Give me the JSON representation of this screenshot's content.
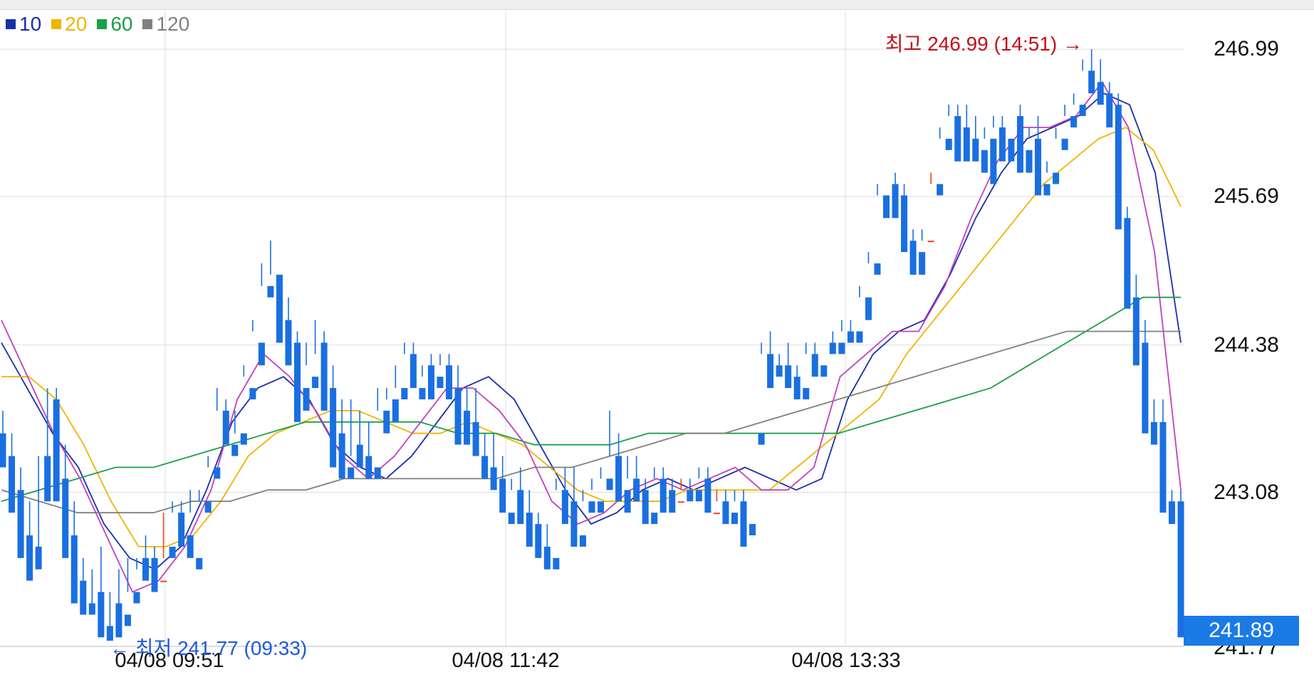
{
  "legend": [
    {
      "name": "10",
      "color": "#1a2fa8"
    },
    {
      "name": "20",
      "color": "#f0b400"
    },
    {
      "name": "60",
      "color": "#1aa048"
    },
    {
      "name": "120",
      "color": "#808080"
    }
  ],
  "annotations": {
    "high": "최고 246.99 (14:51) →",
    "low": "← 최저 241.77 (09:33)",
    "current_price": "241.89",
    "bottom_cut_label": "241.77"
  },
  "colors": {
    "up": "#f0441a",
    "down": "#1a6fe0",
    "ma5": "#c040c0",
    "grid": "#dddddd"
  },
  "chart_data": {
    "type": "candlestick",
    "y_ticks": [
      "246.99",
      "245.69",
      "244.38",
      "243.08"
    ],
    "x_ticks": [
      "04/08 09:51",
      "04/08 11:42",
      "04/08 13:33"
    ],
    "ylim": [
      241.72,
      247.33
    ],
    "high": {
      "value": 246.99,
      "time": "14:51"
    },
    "low": {
      "value": 241.77,
      "time": "09:33"
    },
    "last": 241.89,
    "series": [
      {
        "name": "10",
        "color": "#1a2fa8",
        "values": [
          244.4,
          244.0,
          243.6,
          243.3,
          242.8,
          242.5,
          242.4,
          242.6,
          243.1,
          243.7,
          244.0,
          244.1,
          243.9,
          243.5,
          243.3,
          243.2,
          243.4,
          243.7,
          244.0,
          244.1,
          243.9,
          243.5,
          243.1,
          242.8,
          242.9,
          243.1,
          243.2,
          243.1,
          243.2,
          243.3,
          243.2,
          243.1,
          243.2,
          243.9,
          244.3,
          244.5,
          244.6,
          245.0,
          245.5,
          245.9,
          246.2,
          246.3,
          246.4,
          246.6,
          246.5,
          245.9,
          244.4
        ]
      },
      {
        "name": "20",
        "color": "#f0b400",
        "values": [
          244.1,
          244.1,
          243.9,
          243.5,
          243.0,
          242.6,
          242.6,
          242.7,
          243.0,
          243.4,
          243.6,
          243.7,
          243.8,
          243.8,
          243.7,
          243.6,
          243.6,
          243.7,
          243.6,
          243.5,
          243.3,
          243.1,
          243.0,
          243.0,
          243.0,
          243.1,
          243.1,
          243.1,
          243.1,
          243.3,
          243.5,
          243.7,
          243.9,
          244.3,
          244.6,
          244.9,
          245.2,
          245.5,
          245.8,
          246.0,
          246.2,
          246.3,
          246.1,
          245.6
        ]
      },
      {
        "name": "60",
        "color": "#1aa048",
        "values": [
          243.0,
          243.1,
          243.2,
          243.3,
          243.3,
          243.4,
          243.5,
          243.6,
          243.7,
          243.7,
          243.7,
          243.7,
          243.6,
          243.6,
          243.5,
          243.5,
          243.5,
          243.6,
          243.6,
          243.6,
          243.6,
          243.6,
          243.6,
          243.7,
          243.8,
          243.9,
          244.0,
          244.2,
          244.4,
          244.6,
          244.8,
          244.8
        ]
      },
      {
        "name": "120",
        "color": "#808080",
        "values": [
          243.1,
          243.0,
          242.9,
          242.9,
          242.9,
          243.0,
          243.0,
          243.1,
          243.1,
          243.2,
          243.2,
          243.2,
          243.2,
          243.2,
          243.3,
          243.3,
          243.4,
          243.5,
          243.6,
          243.6,
          243.7,
          243.8,
          243.9,
          244.0,
          244.1,
          244.2,
          244.3,
          244.4,
          244.5,
          244.5,
          244.5,
          244.5
        ]
      },
      {
        "name": "",
        "color": "#c040c0",
        "values": [
          244.6,
          244.1,
          243.6,
          243.2,
          242.7,
          242.2,
          242.3,
          242.6,
          243.1,
          243.9,
          244.3,
          244.1,
          243.8,
          243.4,
          243.2,
          243.4,
          243.7,
          244.0,
          244.0,
          243.8,
          243.5,
          243.0,
          242.8,
          242.9,
          243.1,
          243.2,
          243.1,
          243.2,
          243.3,
          243.1,
          243.1,
          243.3,
          244.1,
          244.3,
          244.5,
          244.5,
          244.9,
          245.5,
          246.0,
          246.3,
          246.3,
          246.4,
          246.7,
          246.3,
          245.2,
          243.1
        ]
      }
    ],
    "candles": [
      [
        243.6,
        243.8,
        243.4,
        243.3
      ],
      [
        243.4,
        243.6,
        243.1,
        242.9
      ],
      [
        243.1,
        243.3,
        242.6,
        242.5
      ],
      [
        242.7,
        243.0,
        242.6,
        242.3
      ],
      [
        242.6,
        243.4,
        242.5,
        242.4
      ],
      [
        243.4,
        244.0,
        243.2,
        243.0
      ],
      [
        243.9,
        244.0,
        243.2,
        243.0
      ],
      [
        243.2,
        243.5,
        242.6,
        242.5
      ],
      [
        242.7,
        243.0,
        242.3,
        242.1
      ],
      [
        242.3,
        242.5,
        242.2,
        242.0
      ],
      [
        242.1,
        242.4,
        242.0,
        242.0
      ],
      [
        242.2,
        242.6,
        241.9,
        241.8
      ],
      [
        241.9,
        242.2,
        241.8,
        241.77
      ],
      [
        242.1,
        242.4,
        241.9,
        241.8
      ],
      [
        242.0,
        242.5,
        242.2,
        241.9
      ],
      [
        242.2,
        242.5,
        242.4,
        242.1
      ],
      [
        242.5,
        242.7,
        242.4,
        242.3
      ],
      [
        242.5,
        242.6,
        242.3,
        242.2
      ],
      [
        242.3,
        242.9,
        242.5,
        242.3
      ],
      [
        242.6,
        243.0,
        242.9,
        242.5
      ],
      [
        242.9,
        243.0,
        242.8,
        242.6
      ],
      [
        242.7,
        243.1,
        242.9,
        242.5
      ],
      [
        242.5,
        243.1,
        243.0,
        242.4
      ],
      [
        243.0,
        243.4,
        243.3,
        242.9
      ],
      [
        243.3,
        244.0,
        243.8,
        243.2
      ],
      [
        243.8,
        243.9,
        243.7,
        243.5
      ],
      [
        243.5,
        243.8,
        243.6,
        243.4
      ],
      [
        243.6,
        244.2,
        244.1,
        243.5
      ],
      [
        244.0,
        244.6,
        244.5,
        243.9
      ],
      [
        244.4,
        245.1,
        244.9,
        244.2
      ],
      [
        244.9,
        245.3,
        245.0,
        244.8
      ],
      [
        245.0,
        245.0,
        244.6,
        244.4
      ],
      [
        244.6,
        244.8,
        244.4,
        244.2
      ],
      [
        244.4,
        244.5,
        244.1,
        243.7
      ],
      [
        244.0,
        244.4,
        244.2,
        243.8
      ],
      [
        244.1,
        244.6,
        244.3,
        244.0
      ],
      [
        244.4,
        244.5,
        244.0,
        243.8
      ],
      [
        244.0,
        244.2,
        243.5,
        243.3
      ],
      [
        243.6,
        243.9,
        243.3,
        243.2
      ],
      [
        243.3,
        243.9,
        243.4,
        243.2
      ],
      [
        243.5,
        243.8,
        243.5,
        243.3
      ],
      [
        243.4,
        243.7,
        243.4,
        243.2
      ],
      [
        243.3,
        244.0,
        243.8,
        243.2
      ],
      [
        243.8,
        244.0,
        243.9,
        243.6
      ],
      [
        243.9,
        244.2,
        244.0,
        243.7
      ],
      [
        244.0,
        244.4,
        244.3,
        243.9
      ],
      [
        244.3,
        244.4,
        244.1,
        244.0
      ],
      [
        244.0,
        244.2,
        244.1,
        243.9
      ],
      [
        244.2,
        244.3,
        244.1,
        243.9
      ],
      [
        244.1,
        244.3,
        244.2,
        244.0
      ],
      [
        244.2,
        244.3,
        244.0,
        243.9
      ],
      [
        244.0,
        244.2,
        243.8,
        243.5
      ],
      [
        243.8,
        244.0,
        243.7,
        243.5
      ],
      [
        243.7,
        244.0,
        243.5,
        243.4
      ],
      [
        243.4,
        243.6,
        243.3,
        243.2
      ],
      [
        243.3,
        243.6,
        243.2,
        243.1
      ],
      [
        243.2,
        243.4,
        243.0,
        242.9
      ],
      [
        242.9,
        243.2,
        243.1,
        242.8
      ],
      [
        243.1,
        243.3,
        242.9,
        242.8
      ],
      [
        242.9,
        243.1,
        242.8,
        242.6
      ],
      [
        242.8,
        242.9,
        242.7,
        242.5
      ],
      [
        242.6,
        242.8,
        242.5,
        242.4
      ],
      [
        242.5,
        243.2,
        243.1,
        242.4
      ],
      [
        243.1,
        243.3,
        243.0,
        242.8
      ],
      [
        243.0,
        243.3,
        242.7,
        242.6
      ],
      [
        242.7,
        243.1,
        243.0,
        242.6
      ],
      [
        243.0,
        243.2,
        243.1,
        242.9
      ],
      [
        243.0,
        243.3,
        243.2,
        242.9
      ],
      [
        243.2,
        243.8,
        243.4,
        243.1
      ],
      [
        243.4,
        243.6,
        243.1,
        243.0
      ],
      [
        243.1,
        243.4,
        243.2,
        242.9
      ],
      [
        243.2,
        243.4,
        243.1,
        243.0
      ],
      [
        243.1,
        243.2,
        242.9,
        242.8
      ],
      [
        242.9,
        243.3,
        243.2,
        242.8
      ],
      [
        243.2,
        243.3,
        243.1,
        242.9
      ],
      [
        243.1,
        243.2,
        243.0,
        242.9
      ],
      [
        243.0,
        243.2,
        243.1,
        243.0
      ],
      [
        243.1,
        243.2,
        243.1,
        243.0
      ],
      [
        243.1,
        243.3,
        243.2,
        243.0
      ],
      [
        243.2,
        243.3,
        242.9,
        242.9
      ],
      [
        242.9,
        243.1,
        243.0,
        242.9
      ],
      [
        243.0,
        243.1,
        242.9,
        242.8
      ],
      [
        242.9,
        243.1,
        243.0,
        242.8
      ],
      [
        243.0,
        243.1,
        242.7,
        242.6
      ],
      [
        242.8,
        243.6,
        243.6,
        242.7
      ],
      [
        243.6,
        244.4,
        244.3,
        243.5
      ],
      [
        244.3,
        244.5,
        244.2,
        244.0
      ],
      [
        244.2,
        244.3,
        244.2,
        244.1
      ],
      [
        244.2,
        244.4,
        244.1,
        244.0
      ],
      [
        244.1,
        244.2,
        244.0,
        243.9
      ],
      [
        244.0,
        244.4,
        244.3,
        243.9
      ],
      [
        244.3,
        244.4,
        244.2,
        244.1
      ],
      [
        244.2,
        244.4,
        244.4,
        244.1
      ],
      [
        244.4,
        244.5,
        244.4,
        244.3
      ],
      [
        244.4,
        244.6,
        244.5,
        244.3
      ],
      [
        244.5,
        244.6,
        244.5,
        244.4
      ],
      [
        244.5,
        244.9,
        244.8,
        244.4
      ],
      [
        244.8,
        245.2,
        245.1,
        244.6
      ],
      [
        245.1,
        245.8,
        245.7,
        245.0
      ],
      [
        245.7,
        245.9,
        245.9,
        245.5
      ],
      [
        245.8,
        245.9,
        245.7,
        245.5
      ],
      [
        245.7,
        245.8,
        245.3,
        245.2
      ],
      [
        245.3,
        245.4,
        245.2,
        245.0
      ],
      [
        245.2,
        245.4,
        245.3,
        245.0
      ],
      [
        245.3,
        245.9,
        245.8,
        245.3
      ],
      [
        245.8,
        246.3,
        246.2,
        245.7
      ],
      [
        246.2,
        246.5,
        246.4,
        246.1
      ],
      [
        246.4,
        246.5,
        246.3,
        246.0
      ],
      [
        246.3,
        246.5,
        246.2,
        246.0
      ],
      [
        246.2,
        246.4,
        246.1,
        246.0
      ],
      [
        246.1,
        246.3,
        246.2,
        245.9
      ],
      [
        246.2,
        246.4,
        246.3,
        245.8
      ],
      [
        246.3,
        246.4,
        246.2,
        246.0
      ],
      [
        246.2,
        246.4,
        246.4,
        246.0
      ],
      [
        246.4,
        246.5,
        246.1,
        245.9
      ],
      [
        246.1,
        246.3,
        246.2,
        245.9
      ],
      [
        246.2,
        246.4,
        245.8,
        245.7
      ],
      [
        245.8,
        246.0,
        245.9,
        245.7
      ],
      [
        245.9,
        246.3,
        246.2,
        245.8
      ],
      [
        246.2,
        246.5,
        246.4,
        246.1
      ],
      [
        246.4,
        246.6,
        246.5,
        246.3
      ],
      [
        246.5,
        246.9,
        246.8,
        246.4
      ],
      [
        246.8,
        246.99,
        246.7,
        246.6
      ],
      [
        246.7,
        246.9,
        246.6,
        246.5
      ],
      [
        246.6,
        246.7,
        246.5,
        246.3
      ],
      [
        246.5,
        246.6,
        245.5,
        245.4
      ],
      [
        245.5,
        245.6,
        244.8,
        244.7
      ],
      [
        244.8,
        245.0,
        244.4,
        244.2
      ],
      [
        244.4,
        244.6,
        243.7,
        243.6
      ],
      [
        243.7,
        243.9,
        243.7,
        243.5
      ],
      [
        243.7,
        243.9,
        243.0,
        242.9
      ],
      [
        243.0,
        243.1,
        243.0,
        242.8
      ],
      [
        243.0,
        243.1,
        241.89,
        241.8
      ]
    ]
  }
}
